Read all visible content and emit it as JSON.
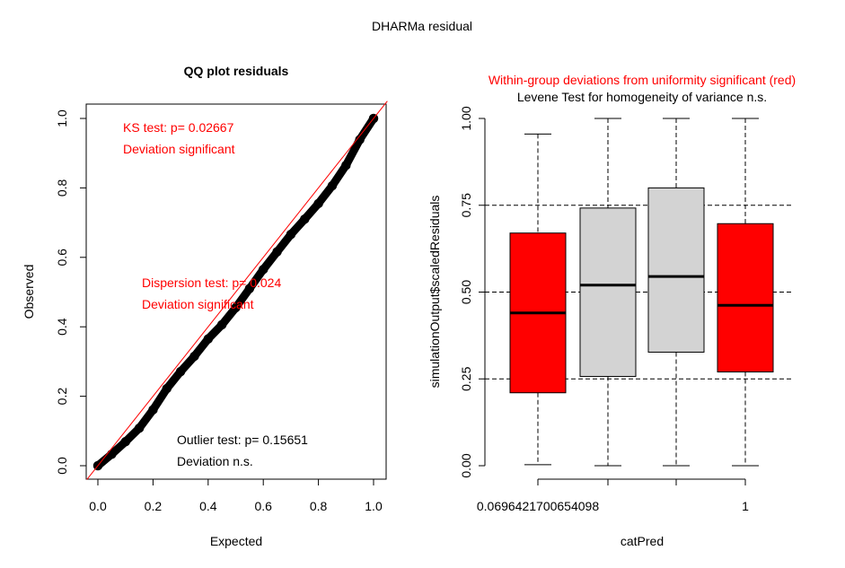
{
  "page_title": "DHARMa residual",
  "colors": {
    "red": "#ff0000",
    "grey": "#d3d3d3",
    "black": "#000000"
  },
  "chart_data": [
    {
      "type": "scatter",
      "title": "QQ plot residuals",
      "xlabel": "Expected",
      "ylabel": "Observed",
      "xlim": [
        0,
        1
      ],
      "ylim": [
        0,
        1
      ],
      "xticks": [
        "0.0",
        "0.2",
        "0.4",
        "0.6",
        "0.8",
        "1.0"
      ],
      "yticks": [
        "0.0",
        "0.2",
        "0.4",
        "0.6",
        "0.8",
        "1.0"
      ],
      "reference_line": {
        "from": [
          0,
          0
        ],
        "to": [
          1,
          1
        ],
        "color": "red"
      },
      "points": {
        "x": [
          0,
          0.05,
          0.1,
          0.15,
          0.2,
          0.25,
          0.3,
          0.35,
          0.4,
          0.45,
          0.5,
          0.55,
          0.6,
          0.65,
          0.7,
          0.75,
          0.8,
          0.85,
          0.9,
          0.95,
          1.0
        ],
        "y": [
          0,
          0.033,
          0.069,
          0.108,
          0.161,
          0.222,
          0.271,
          0.315,
          0.365,
          0.406,
          0.455,
          0.51,
          0.565,
          0.616,
          0.666,
          0.71,
          0.755,
          0.806,
          0.865,
          0.939,
          1.0
        ]
      },
      "annotations": [
        {
          "lines": [
            "KS test: p= 0.02667",
            "Deviation  significant"
          ],
          "color": "red"
        },
        {
          "lines": [
            "Dispersion test: p= 0.024",
            "Deviation  significant"
          ],
          "color": "red"
        },
        {
          "lines": [
            "Outlier test: p= 0.15651",
            "Deviation  n.s."
          ],
          "color": "black"
        }
      ]
    },
    {
      "type": "box",
      "title": "Within-group deviations from uniformity significant (red)",
      "subtitle": "Levene Test for homogeneity of variance n.s.",
      "xlabel": "catPred",
      "ylabel": "simulationOutput$scaledResiduals",
      "ylim": [
        0,
        1
      ],
      "yticks": [
        "0.00",
        "0.25",
        "0.50",
        "0.75",
        "1.00"
      ],
      "hlines": [
        0.25,
        0.5,
        0.75
      ],
      "xtick_labels": [
        "0.0696421700654098",
        "",
        "",
        "1"
      ],
      "boxes": [
        {
          "min": 0.003,
          "q1": 0.21,
          "median": 0.44,
          "q3": 0.67,
          "max": 0.955,
          "color": "red"
        },
        {
          "min": 0.0,
          "q1": 0.257,
          "median": 0.52,
          "q3": 0.742,
          "max": 1.0,
          "color": "grey"
        },
        {
          "min": 0.0,
          "q1": 0.327,
          "median": 0.545,
          "q3": 0.8,
          "max": 1.0,
          "color": "grey"
        },
        {
          "min": 0.0,
          "q1": 0.27,
          "median": 0.462,
          "q3": 0.697,
          "max": 1.0,
          "color": "red"
        }
      ]
    }
  ]
}
